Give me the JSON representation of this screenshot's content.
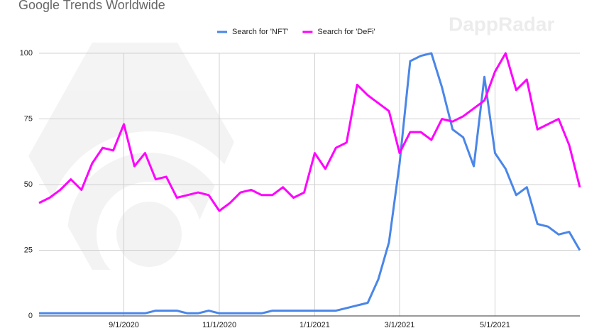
{
  "chart_data": {
    "type": "line",
    "title": "Google Trends Worldwide",
    "watermark": "DappRadar",
    "categories": [
      null,
      null,
      null,
      null,
      null,
      null,
      null,
      null,
      "9/1/2020",
      null,
      null,
      null,
      null,
      null,
      null,
      null,
      null,
      "11/1/2020",
      null,
      null,
      null,
      null,
      null,
      null,
      null,
      null,
      "1/1/2021",
      null,
      null,
      null,
      null,
      null,
      null,
      null,
      "3/1/2021",
      null,
      null,
      null,
      null,
      null,
      null,
      null,
      null,
      "5/1/2021",
      null,
      null,
      null,
      null,
      null,
      null,
      null,
      null
    ],
    "series": [
      {
        "name": "Search for 'NFT'",
        "color": "#4a86e8",
        "values": [
          1,
          1,
          1,
          1,
          1,
          1,
          1,
          1,
          1,
          1,
          1,
          2,
          2,
          2,
          1,
          1,
          2,
          1,
          1,
          1,
          1,
          1,
          2,
          2,
          2,
          2,
          2,
          2,
          2,
          3,
          4,
          5,
          14,
          28,
          58,
          97,
          99,
          100,
          87,
          71,
          68,
          57,
          91,
          62,
          56,
          46,
          49,
          35,
          34,
          31,
          32,
          25
        ]
      },
      {
        "name": "Search for 'DeFi'",
        "color": "#ff00ff",
        "values": [
          43,
          45,
          48,
          52,
          48,
          58,
          64,
          63,
          73,
          57,
          62,
          52,
          53,
          45,
          46,
          47,
          46,
          40,
          43,
          47,
          48,
          46,
          46,
          49,
          45,
          47,
          62,
          56,
          64,
          66,
          88,
          84,
          81,
          78,
          62,
          70,
          70,
          67,
          75,
          74,
          76,
          79,
          82,
          93,
          100,
          86,
          90,
          71,
          73,
          75,
          65,
          49
        ]
      }
    ],
    "ylim": [
      0,
      100
    ],
    "yticks": [
      0,
      25,
      50,
      75,
      100
    ],
    "grid": true,
    "legend": "top"
  }
}
